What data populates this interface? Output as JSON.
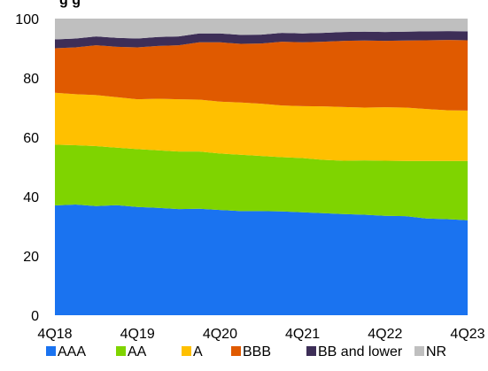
{
  "chart_data": {
    "type": "area",
    "stacked": true,
    "title_partial": "g          g",
    "title_color": "#1f6fd1",
    "x": [
      "4Q18",
      "1Q19",
      "2Q19",
      "3Q19",
      "4Q19",
      "1Q20",
      "2Q20",
      "3Q20",
      "4Q20",
      "1Q21",
      "2Q21",
      "3Q21",
      "4Q21",
      "1Q22",
      "2Q22",
      "3Q22",
      "4Q22",
      "1Q23",
      "2Q23",
      "3Q23",
      "4Q23"
    ],
    "x_tick_labels": [
      "4Q18",
      "4Q19",
      "4Q20",
      "4Q21",
      "4Q22",
      "4Q23"
    ],
    "y_ticks": [
      0,
      20,
      40,
      60,
      80,
      100
    ],
    "ylim": [
      0,
      100
    ],
    "grid": false,
    "legend_position": "bottom",
    "series": [
      {
        "name": "AAA",
        "color": "#1a73f0",
        "values": [
          37,
          37.3,
          36.8,
          37.1,
          36.5,
          36.2,
          35.8,
          35.9,
          35.5,
          35.1,
          35.1,
          35,
          34.7,
          34.4,
          34.1,
          33.9,
          33.5,
          33.4,
          32.6,
          32.4,
          32
        ]
      },
      {
        "name": "AA",
        "color": "#7fd400",
        "values": [
          20.5,
          20,
          20.2,
          19.4,
          19.5,
          19.4,
          19.4,
          19.3,
          19,
          19,
          18.6,
          18.3,
          18.3,
          18,
          18,
          18.3,
          18.6,
          18.6,
          19.4,
          19.6,
          20
        ]
      },
      {
        "name": "A",
        "color": "#ffc000",
        "values": [
          17.5,
          17.2,
          17.2,
          17,
          16.8,
          17.4,
          17.6,
          17.5,
          17.5,
          17.6,
          17.6,
          17.4,
          17.5,
          18,
          18.1,
          17.8,
          18,
          18,
          17.5,
          17.1,
          17
        ]
      },
      {
        "name": "BBB",
        "color": "#e05a00",
        "values": [
          15,
          15.8,
          16.8,
          17,
          17.5,
          17.8,
          18.2,
          19.3,
          20,
          19.8,
          20.3,
          21.5,
          21.5,
          21.8,
          22.3,
          22.6,
          22.4,
          22.6,
          23.2,
          23.7,
          23.7
        ]
      },
      {
        "name": "BB and lower",
        "color": "#3d2e57",
        "values": [
          3,
          3,
          3,
          3,
          3,
          3,
          3,
          3,
          3,
          3,
          3,
          3,
          3,
          3,
          3,
          3,
          3,
          3,
          3,
          3,
          3
        ]
      },
      {
        "name": "NR",
        "color": "#bfbfbf",
        "values": [
          7,
          6.7,
          6,
          6.5,
          6.7,
          6.2,
          6,
          5,
          5,
          5.5,
          5.4,
          4.8,
          5,
          4.8,
          4.5,
          4.4,
          4.5,
          4.4,
          4.3,
          4.2,
          4.3
        ]
      }
    ]
  }
}
